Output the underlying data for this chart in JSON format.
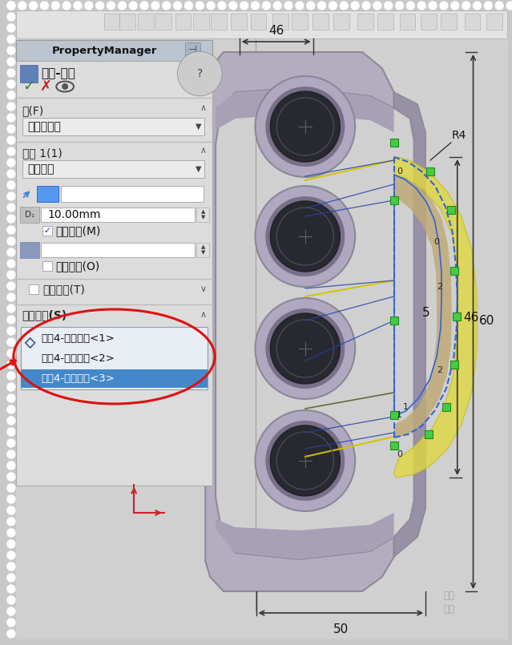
{
  "bg_color": "#c8c8c8",
  "panel_bg": "#dcdcdc",
  "panel_title_bg": "#b8c0cc",
  "fig_width": 6.39,
  "fig_height": 8.05,
  "title_text": "PropertyManager",
  "feature_text": "凸台-拉伸",
  "from_label": "从(F)",
  "from_value": "草图基准面",
  "dir_label": "方向 1(1)",
  "dir_value": "两侧对称",
  "dim_value": "10.00mm",
  "merge_label": "合并结果(M)",
  "draft_label": "向外拔模(O)",
  "thin_label": "薄壁特征(T)",
  "contour_label": "所选轮廓(S)",
  "contour_items": [
    "草图4-局部范围<1>",
    "草图4-局部范围<2>",
    "草图4-局部范围<3>"
  ],
  "dim_46_top": "46",
  "dim_50_bot": "50",
  "dim_60": "60",
  "dim_46_right": "46",
  "dim_R4": "R4",
  "dim_5": "5",
  "body_color": "#b8b0c8",
  "hole_outer_color": "#a8a0b8",
  "hole_inner_color": "#606070",
  "hole_dark_color": "#303038",
  "knuckle_tan": "#c8b890",
  "yellow_highlight": "#e8e050",
  "blue_sketch": "#3366cc",
  "green_sq": "#44bb44"
}
